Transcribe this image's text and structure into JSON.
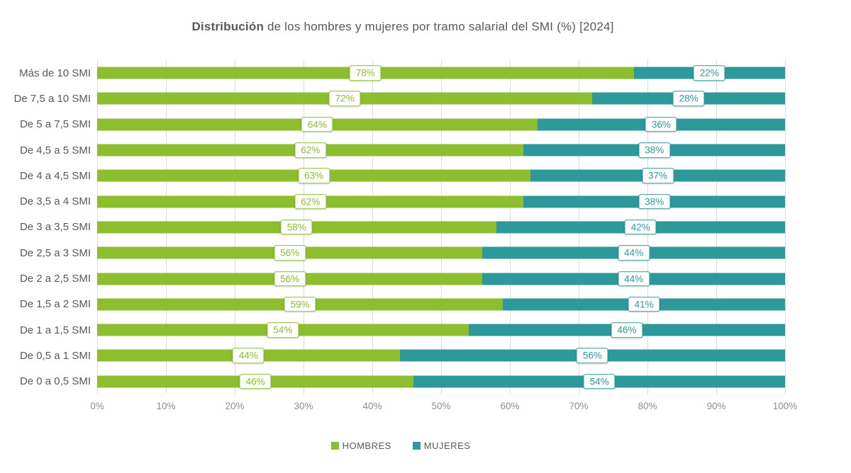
{
  "title": {
    "bold": "Distribución",
    "rest": " de los hombres y mujeres por tramo salarial del SMI (%) [2024]"
  },
  "chart_data": {
    "type": "bar",
    "orientation": "horizontal",
    "stacked": true,
    "unit": "%",
    "title": "Distribución de los hombres y mujeres por tramo salarial del SMI (%) [2024]",
    "categories": [
      "Más de 10 SMI",
      "De 7,5 a 10 SMI",
      "De 5 a 7,5 SMI",
      "De 4,5 a 5 SMI",
      "De 4 a 4,5 SMI",
      "De 3,5 a 4 SMI",
      "De 3 a 3,5 SMI",
      "De 2,5 a 3 SMI",
      "De 2 a 2,5 SMI",
      "De 1,5 a 2 SMI",
      "De 1 a 1,5 SMI",
      "De 0,5 a 1 SMI",
      "De 0 a 0,5 SMI"
    ],
    "series": [
      {
        "name": "HOMBRES",
        "color": "#8cbe2f",
        "values": [
          78,
          72,
          64,
          62,
          63,
          62,
          58,
          56,
          56,
          59,
          54,
          44,
          46
        ],
        "labels": [
          "78%",
          "72%",
          "64%",
          "62%",
          "63%",
          "62%",
          "58%",
          "56%",
          "56%",
          "59%",
          "54%",
          "44%",
          "46%"
        ]
      },
      {
        "name": "MUJERES",
        "color": "#2e999b",
        "values": [
          22,
          28,
          36,
          38,
          37,
          38,
          42,
          44,
          44,
          41,
          46,
          56,
          54
        ],
        "labels": [
          "22%",
          "28%",
          "36%",
          "38%",
          "37%",
          "38%",
          "42%",
          "44%",
          "44%",
          "41%",
          "46%",
          "56%",
          "54%"
        ]
      }
    ],
    "x_axis": {
      "min": 0,
      "max": 100,
      "tick_labels": [
        "0%",
        "10%",
        "20%",
        "30%",
        "40%",
        "50%",
        "60%",
        "70%",
        "80%",
        "90%",
        "100%"
      ]
    },
    "grid": true,
    "legend_position": "bottom",
    "legend": [
      {
        "label": "HOMBRES",
        "color": "#8cbe2f"
      },
      {
        "label": "MUJERES",
        "color": "#2e999b"
      }
    ]
  }
}
